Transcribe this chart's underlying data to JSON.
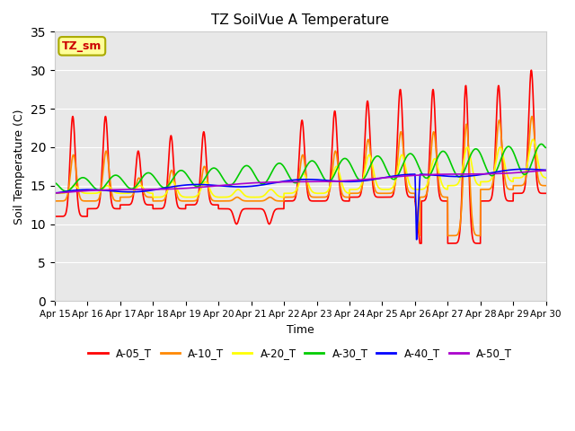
{
  "title": "TZ SoilVue A Temperature",
  "xlabel": "Time",
  "ylabel": "Soil Temperature (C)",
  "ylim": [
    0,
    35
  ],
  "yticks": [
    0,
    5,
    10,
    15,
    20,
    25,
    30,
    35
  ],
  "facecolor": "#e8e8e8",
  "legend_entries": [
    "A-05_T",
    "A-10_T",
    "A-20_T",
    "A-30_T",
    "A-40_T",
    "A-50_T"
  ],
  "line_colors": [
    "#ff0000",
    "#ff8800",
    "#ffff00",
    "#00cc00",
    "#0000ff",
    "#aa00cc"
  ],
  "annotation_text": "TZ_sm",
  "annotation_box_color": "#ffff99",
  "annotation_border_color": "#aaaa00",
  "xticklabels": [
    "Apr 15",
    "Apr 16",
    "Apr 17",
    "Apr 18",
    "Apr 19",
    "Apr 20",
    "Apr 21",
    "Apr 22",
    "Apr 23",
    "Apr 24",
    "Apr 25",
    "Apr 26",
    "Apr 27",
    "Apr 28",
    "Apr 29",
    "Apr 30"
  ]
}
